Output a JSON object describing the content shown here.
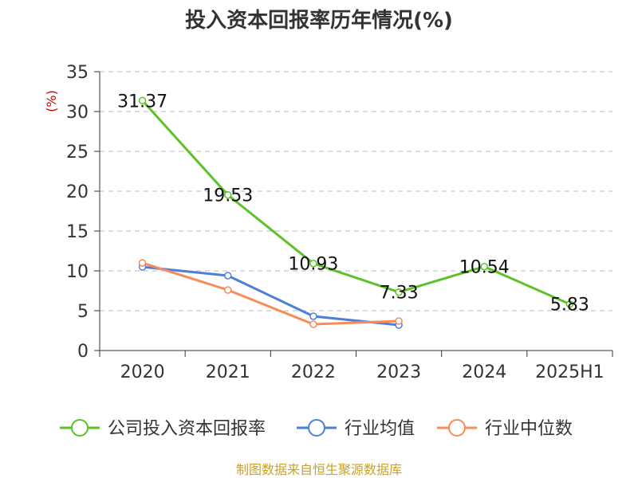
{
  "chart_data": {
    "type": "line",
    "title": "投入资本回报率历年情况(%)",
    "y_unit": "(%)",
    "categories": [
      "2020",
      "2021",
      "2022",
      "2023",
      "2024",
      "2025H1"
    ],
    "ylim": [
      0,
      35
    ],
    "yticks": [
      0,
      5,
      10,
      15,
      20,
      25,
      30,
      35
    ],
    "grid": true,
    "legend_position": "bottom",
    "series": [
      {
        "name": "公司投入资本回报率",
        "color": "#5cc22a",
        "values": [
          31.37,
          19.53,
          10.93,
          7.33,
          10.54,
          5.83
        ],
        "labels": [
          "31.37",
          "19.53",
          "10.93",
          "7.33",
          "10.54",
          "5.83"
        ]
      },
      {
        "name": "行业均值",
        "color": "#4e7fd8",
        "values": [
          10.5,
          9.4,
          4.3,
          3.2,
          null,
          null
        ]
      },
      {
        "name": "行业中位数",
        "color": "#f78c5a",
        "values": [
          11.0,
          7.6,
          3.3,
          3.7,
          null,
          null
        ]
      }
    ]
  },
  "source": "制图数据来自恒生聚源数据库"
}
